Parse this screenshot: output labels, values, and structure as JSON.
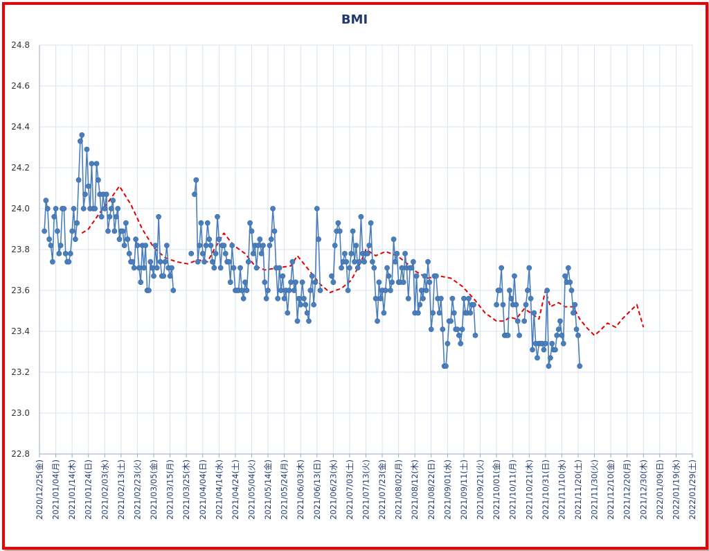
{
  "chart_data": {
    "type": "line",
    "title": "BMI",
    "ylim": [
      22.8,
      24.8
    ],
    "y_ticks": [
      "22.8",
      "23.0",
      "23.2",
      "23.4",
      "23.6",
      "23.8",
      "24.0",
      "24.2",
      "24.4",
      "24.6",
      "24.8"
    ],
    "x_range": [
      "2020-12-25",
      "2022-01-29"
    ],
    "x_ticks": [
      "2020/12/25(金)",
      "2021/01/04(月)",
      "2021/01/14(木)",
      "2021/01/24(日)",
      "2021/02/03(水)",
      "2021/02/13(土)",
      "2021/02/23(火)",
      "2021/03/05(金)",
      "2021/03/15(月)",
      "2021/03/25(木)",
      "2021/04/04(日)",
      "2021/04/14(水)",
      "2021/04/24(土)",
      "2021/05/04(火)",
      "2021/05/14(金)",
      "2021/05/24(月)",
      "2021/06/03(木)",
      "2021/06/13(日)",
      "2021/06/23(水)",
      "2021/07/03(土)",
      "2021/07/13(火)",
      "2021/07/23(金)",
      "2021/08/02(月)",
      "2021/08/12(木)",
      "2021/08/22(日)",
      "2021/09/01(水)",
      "2021/09/11(土)",
      "2021/09/21(火)",
      "2021/10/01(金)",
      "2021/10/11(月)",
      "2021/10/21(木)",
      "2021/10/31(日)",
      "2021/11/10(水)",
      "2021/11/20(土)",
      "2021/11/30(火)",
      "2021/12/10(金)",
      "2021/12/20(月)",
      "2021/12/30(木)",
      "2022/01/09(日)",
      "2022/01/19(水)",
      "2022/01/29(土)"
    ],
    "grid": true,
    "legend": "none",
    "series": [
      {
        "style": "solid-line-with-markers",
        "color": "#4a7ebb",
        "x_start": "2020-12-28",
        "values": [
          23.89,
          24.04,
          24.0,
          23.85,
          23.82,
          23.74,
          23.96,
          24.0,
          23.89,
          23.78,
          23.82,
          24.0,
          24.0,
          23.78,
          23.74,
          23.74,
          23.78,
          23.89,
          24.0,
          23.85,
          23.93,
          24.14,
          24.33,
          24.36,
          24.0,
          24.07,
          24.29,
          24.11,
          24.0,
          24.22,
          24.0,
          24.0,
          24.22,
          24.14,
          24.07,
          23.96,
          24.07,
          24.0,
          24.07,
          23.89,
          23.96,
          24.0,
          24.04,
          23.89,
          23.96,
          24.0,
          23.85,
          23.89,
          23.89,
          23.82,
          23.93,
          23.85,
          23.78,
          23.74,
          23.74,
          23.71,
          23.85,
          23.82,
          23.71,
          23.64,
          23.82,
          23.71,
          23.82,
          23.6,
          23.6,
          23.74,
          23.71,
          23.67,
          23.82,
          23.71,
          23.96,
          23.74,
          23.67,
          23.67,
          23.74,
          23.82,
          23.71,
          23.67,
          23.71,
          23.6,
          null,
          null,
          null,
          null,
          null,
          null,
          null,
          null,
          null,
          null,
          23.78,
          null,
          24.07,
          24.14,
          23.74,
          23.82,
          23.93,
          23.78,
          23.74,
          23.82,
          23.93,
          23.85,
          23.82,
          23.74,
          23.71,
          23.78,
          23.96,
          23.85,
          23.71,
          23.82,
          23.82,
          23.78,
          23.74,
          23.74,
          23.64,
          23.82,
          23.71,
          23.6,
          23.6,
          23.6,
          23.71,
          23.6,
          23.56,
          23.64,
          23.6,
          23.74,
          23.93,
          23.89,
          23.78,
          23.82,
          23.71,
          23.82,
          23.85,
          23.78,
          23.82,
          23.64,
          23.56,
          23.6,
          23.82,
          23.85,
          24.0,
          23.89,
          23.71,
          23.56,
          23.71,
          23.6,
          23.67,
          23.56,
          23.6,
          23.49,
          23.6,
          23.64,
          23.74,
          23.6,
          23.64,
          23.45,
          23.56,
          23.53,
          23.64,
          23.56,
          23.53,
          23.49,
          23.45,
          23.6,
          23.67,
          23.53,
          23.64,
          24.0,
          23.85,
          23.6,
          null,
          null,
          null,
          null,
          null,
          null,
          23.67,
          23.64,
          23.82,
          23.89,
          23.93,
          23.89,
          23.71,
          23.74,
          23.78,
          23.74,
          23.6,
          23.71,
          23.78,
          23.89,
          23.74,
          23.82,
          23.71,
          23.74,
          23.96,
          23.78,
          23.74,
          23.78,
          23.78,
          23.82,
          23.93,
          23.74,
          23.71,
          23.56,
          23.45,
          23.64,
          23.56,
          23.6,
          23.49,
          23.6,
          23.71,
          23.67,
          23.6,
          23.64,
          23.85,
          23.74,
          23.78,
          23.64,
          23.64,
          23.71,
          23.64,
          23.78,
          23.71,
          23.56,
          23.71,
          23.71,
          23.74,
          23.49,
          23.67,
          23.49,
          23.53,
          23.6,
          23.56,
          23.67,
          23.6,
          23.74,
          23.64,
          23.41,
          23.49,
          23.67,
          23.67,
          23.56,
          23.49,
          23.56,
          23.41,
          23.23,
          23.23,
          23.34,
          23.45,
          23.45,
          23.56,
          23.49,
          23.41,
          23.41,
          23.38,
          23.34,
          23.41,
          23.56,
          23.49,
          23.49,
          23.56,
          23.49,
          23.53,
          23.53,
          23.38,
          null,
          null,
          null,
          null,
          null,
          null,
          null,
          null,
          null,
          null,
          null,
          null,
          23.53,
          23.6,
          23.6,
          23.71,
          23.53,
          23.38,
          23.38,
          23.38,
          23.6,
          23.56,
          23.53,
          23.67,
          23.53,
          23.45,
          23.38,
          null,
          null,
          23.45,
          23.53,
          23.6,
          23.71,
          23.56,
          23.31,
          23.49,
          23.34,
          23.27,
          23.34,
          23.34,
          23.34,
          23.31,
          23.34,
          23.6,
          23.23,
          23.27,
          23.34,
          23.31,
          23.31,
          23.38,
          23.41,
          23.45,
          23.38,
          23.34,
          23.67,
          23.64,
          23.71,
          23.64,
          23.6,
          23.49,
          23.53,
          23.41,
          23.38,
          23.23
        ]
      },
      {
        "style": "dashed-trend",
        "color": "#e00000",
        "points": [
          [
            "2021-01-20",
            23.88
          ],
          [
            "2021-01-24",
            23.9
          ],
          [
            "2021-01-31",
            23.98
          ],
          [
            "2021-02-05",
            24.03
          ],
          [
            "2021-02-12",
            24.11
          ],
          [
            "2021-02-19",
            24.02
          ],
          [
            "2021-02-26",
            23.9
          ],
          [
            "2021-03-05",
            23.81
          ],
          [
            "2021-03-12",
            23.76
          ],
          [
            "2021-03-19",
            23.74
          ],
          [
            "2021-03-26",
            23.73
          ],
          [
            "2021-04-01",
            23.75
          ],
          [
            "2021-04-07",
            23.74
          ],
          [
            "2021-04-11",
            23.8
          ],
          [
            "2021-04-17",
            23.88
          ],
          [
            "2021-04-23",
            23.82
          ],
          [
            "2021-04-30",
            23.78
          ],
          [
            "2021-05-06",
            23.72
          ],
          [
            "2021-05-12",
            23.7
          ],
          [
            "2021-05-20",
            23.71
          ],
          [
            "2021-05-28",
            23.72
          ],
          [
            "2021-06-01",
            23.77
          ],
          [
            "2021-06-08",
            23.7
          ],
          [
            "2021-06-15",
            23.63
          ],
          [
            "2021-06-21",
            23.59
          ],
          [
            "2021-06-28",
            23.61
          ],
          [
            "2021-07-04",
            23.65
          ],
          [
            "2021-07-10",
            23.74
          ],
          [
            "2021-07-13",
            23.8
          ],
          [
            "2021-07-19",
            23.77
          ],
          [
            "2021-07-25",
            23.79
          ],
          [
            "2021-08-01",
            23.77
          ],
          [
            "2021-08-06",
            23.74
          ],
          [
            "2021-08-13",
            23.69
          ],
          [
            "2021-08-20",
            23.66
          ],
          [
            "2021-08-27",
            23.67
          ],
          [
            "2021-09-03",
            23.66
          ],
          [
            "2021-09-10",
            23.62
          ],
          [
            "2021-09-17",
            23.56
          ],
          [
            "2021-09-24",
            23.49
          ],
          [
            "2021-10-01",
            23.45
          ],
          [
            "2021-10-06",
            23.45
          ],
          [
            "2021-10-09",
            23.47
          ],
          [
            "2021-10-13",
            23.46
          ],
          [
            "2021-10-18",
            23.51
          ],
          [
            "2021-10-22",
            23.49
          ],
          [
            "2021-10-27",
            23.46
          ],
          [
            "2021-10-31",
            23.6
          ],
          [
            "2021-11-03",
            23.52
          ],
          [
            "2021-11-08",
            23.54
          ],
          [
            "2021-11-12",
            23.52
          ],
          [
            "2021-11-17",
            23.52
          ],
          [
            "2021-11-21",
            23.46
          ],
          [
            "2021-11-25",
            23.42
          ],
          [
            "2021-11-30",
            23.38
          ],
          [
            "2021-12-03",
            23.4
          ],
          [
            "2021-12-08",
            23.44
          ],
          [
            "2021-12-13",
            23.42
          ],
          [
            "2021-12-17",
            23.46
          ],
          [
            "2021-12-22",
            23.5
          ],
          [
            "2021-12-26",
            23.53
          ],
          [
            "2021-12-30",
            23.42
          ]
        ]
      }
    ]
  }
}
